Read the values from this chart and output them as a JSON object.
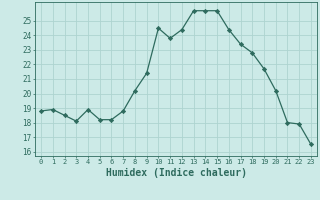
{
  "x": [
    0,
    1,
    2,
    3,
    4,
    5,
    6,
    7,
    8,
    9,
    10,
    11,
    12,
    13,
    14,
    15,
    16,
    17,
    18,
    19,
    20,
    21,
    22,
    23
  ],
  "y": [
    18.8,
    18.9,
    18.5,
    18.1,
    18.9,
    18.2,
    18.2,
    18.8,
    20.2,
    21.4,
    24.5,
    23.8,
    24.4,
    25.7,
    25.7,
    25.7,
    24.4,
    23.4,
    22.8,
    21.7,
    20.2,
    18.0,
    17.9,
    16.5
  ],
  "line_color": "#2e6b5e",
  "marker": "D",
  "marker_size": 2.2,
  "background_color": "#cceae7",
  "grid_color": "#aed4d0",
  "tick_color": "#2e6b5e",
  "xlabel": "Humidex (Indice chaleur)",
  "xlabel_fontsize": 7,
  "ylabel_ticks": [
    16,
    17,
    18,
    19,
    20,
    21,
    22,
    23,
    24,
    25
  ],
  "xlim": [
    -0.5,
    23.5
  ],
  "ylim": [
    15.7,
    26.3
  ]
}
